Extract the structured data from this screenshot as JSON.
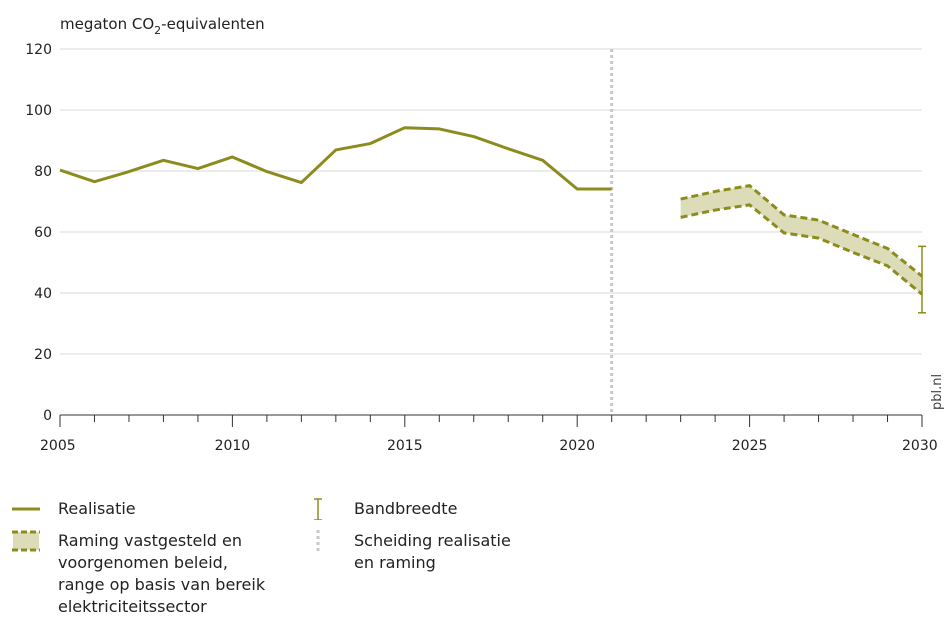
{
  "chart_data": {
    "type": "line",
    "ylabel_main": "megaton CO",
    "ylabel_sub": "2",
    "ylabel_rest": "-equivalenten",
    "xlim": [
      2005,
      2030
    ],
    "ylim": [
      0,
      120
    ],
    "x_ticks": [
      2005,
      2010,
      2015,
      2020,
      2025,
      2030
    ],
    "y_ticks": [
      0,
      20,
      40,
      60,
      80,
      100,
      120
    ],
    "grid": true,
    "colors": {
      "line": "#8c8c1e",
      "band_fill": "#dcddb8",
      "divider": "#c8c8c8",
      "grid": "#d9d9d9"
    },
    "realisatie": {
      "x": [
        2005,
        2006,
        2007,
        2008,
        2009,
        2010,
        2011,
        2012,
        2013,
        2014,
        2015,
        2016,
        2017,
        2018,
        2019,
        2020,
        2021
      ],
      "y": [
        80.3,
        76.5,
        79.8,
        83.5,
        80.8,
        84.6,
        79.8,
        76.2,
        86.9,
        89.0,
        94.2,
        93.8,
        91.3,
        87.3,
        83.5,
        74.1,
        74.1
      ]
    },
    "raming": {
      "x": [
        2023,
        2024,
        2025,
        2026,
        2027,
        2028,
        2029,
        2030
      ],
      "upper": [
        70.8,
        73.3,
        75.2,
        65.6,
        63.9,
        59.2,
        54.6,
        45.5
      ],
      "lower": [
        64.8,
        67.2,
        68.9,
        59.7,
        58.0,
        53.3,
        48.9,
        39.6
      ]
    },
    "divider_x": 2021,
    "bandbreedte": {
      "x": 2030,
      "low": 33.5,
      "high": 55.3
    },
    "credit": "pbl.nl"
  },
  "legend": {
    "realisatie": "Realisatie",
    "raming": "Raming vastgesteld en\nvoorgenomen beleid,\nrange op basis van bereik\nelektriciteitssector",
    "bandbreedte": "Bandbreedte",
    "scheiding": "Scheiding realisatie\nen raming"
  }
}
